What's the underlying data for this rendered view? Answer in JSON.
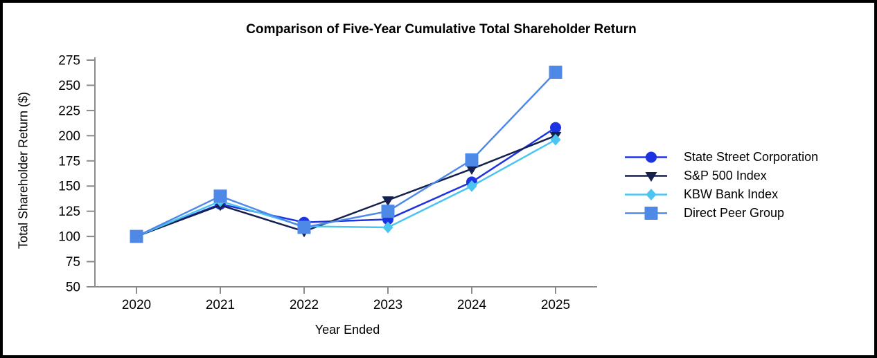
{
  "chart_data": {
    "type": "line",
    "title": "Comparison of Five-Year Cumulative Total Shareholder Return",
    "xlabel": "Year Ended",
    "ylabel": "Total Shareholder Return ($)",
    "categories": [
      "2020",
      "2021",
      "2022",
      "2023",
      "2024",
      "2025"
    ],
    "y_axis": {
      "min": 50,
      "max": 275,
      "step": 25
    },
    "grid": false,
    "legend_position": "right",
    "axis_color": "#8a8a8a",
    "text_color": "#000000",
    "series": [
      {
        "name": "State Street Corporation",
        "marker": "circle",
        "color": "#1d33e0",
        "values": [
          100,
          132,
          114,
          117,
          154,
          208
        ]
      },
      {
        "name": "S&P 500 Index",
        "marker": "triangle-down",
        "color": "#15204e",
        "values": [
          100,
          131,
          105,
          136,
          167,
          200
        ]
      },
      {
        "name": "KBW Bank Index",
        "marker": "diamond",
        "color": "#4cc4f1",
        "values": [
          100,
          135,
          110,
          109,
          150,
          196
        ]
      },
      {
        "name": "Direct Peer Group",
        "marker": "square",
        "color": "#4e89e8",
        "values": [
          100,
          140,
          109,
          125,
          176,
          263
        ]
      }
    ]
  }
}
